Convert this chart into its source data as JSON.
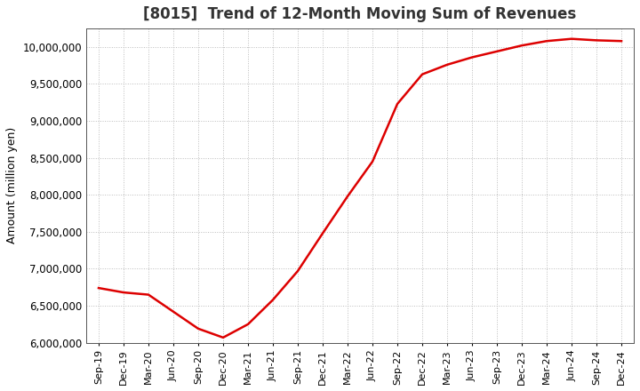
{
  "title": "[8015]  Trend of 12-Month Moving Sum of Revenues",
  "ylabel": "Amount (million yen)",
  "background_color": "#ffffff",
  "plot_bg_color": "#ffffff",
  "line_color": "#dd0000",
  "ylim": [
    6000000,
    10250000
  ],
  "yticks": [
    6000000,
    6500000,
    7000000,
    7500000,
    8000000,
    8500000,
    9000000,
    9500000,
    10000000
  ],
  "x_labels": [
    "Sep-19",
    "Dec-19",
    "Mar-20",
    "Jun-20",
    "Sep-20",
    "Dec-20",
    "Mar-21",
    "Jun-21",
    "Sep-21",
    "Dec-21",
    "Mar-22",
    "Jun-22",
    "Sep-22",
    "Dec-22",
    "Mar-23",
    "Jun-23",
    "Sep-23",
    "Dec-23",
    "Mar-24",
    "Jun-24",
    "Sep-24",
    "Dec-24"
  ],
  "values": [
    6740000,
    6680000,
    6650000,
    6420000,
    6190000,
    6070000,
    6250000,
    6580000,
    6970000,
    7480000,
    7980000,
    8450000,
    9230000,
    9630000,
    9760000,
    9860000,
    9940000,
    10020000,
    10080000,
    10110000,
    10090000,
    10080000
  ],
  "title_fontsize": 12,
  "ylabel_fontsize": 9,
  "tick_fontsize": 8.5,
  "xtick_fontsize": 8,
  "line_width": 1.8
}
